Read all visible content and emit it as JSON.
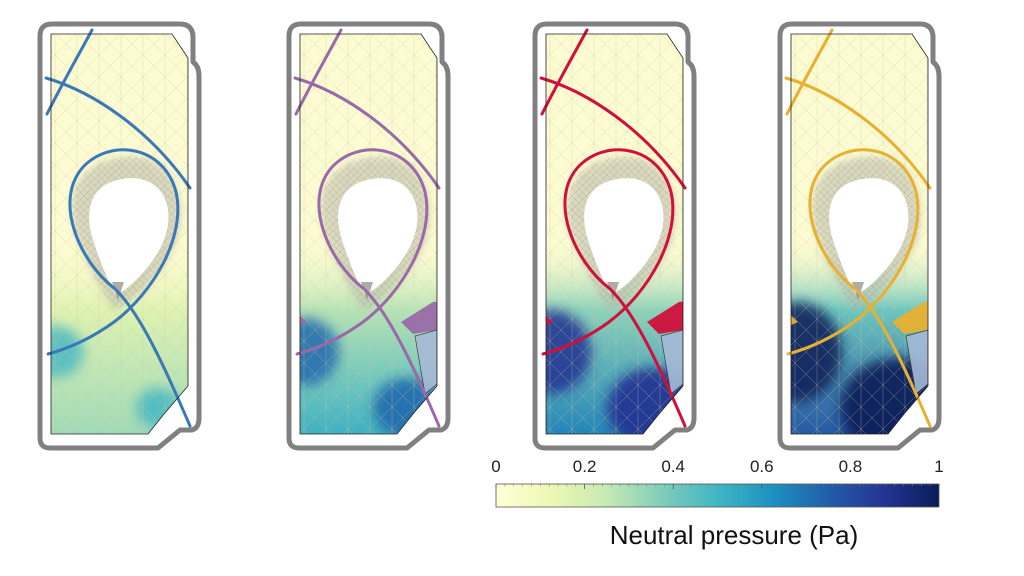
{
  "colorbar": {
    "label": "Neutral pressure (Pa)",
    "ticks": [
      "0",
      "0.2",
      "0.4",
      "0.6",
      "0.8",
      "1"
    ],
    "tick_values": [
      0,
      0.2,
      0.4,
      0.6,
      0.8,
      1
    ],
    "range": [
      0,
      1
    ],
    "colormap": [
      "#ffffd9",
      "#edf8b1",
      "#c7e9b4",
      "#7fcdbb",
      "#41b6c4",
      "#1d91c0",
      "#225ea8",
      "#253494",
      "#081d58"
    ]
  },
  "panels": [
    {
      "separatrix_color": "#3a78b8"
    },
    {
      "separatrix_color": "#9a6aa8"
    },
    {
      "separatrix_color": "#d0103a"
    },
    {
      "separatrix_color": "#e8b030"
    }
  ],
  "colors": {
    "vessel_wall": "#808080",
    "plasma_core": "#ffffff",
    "mesh_background": "#fcfbd2"
  }
}
